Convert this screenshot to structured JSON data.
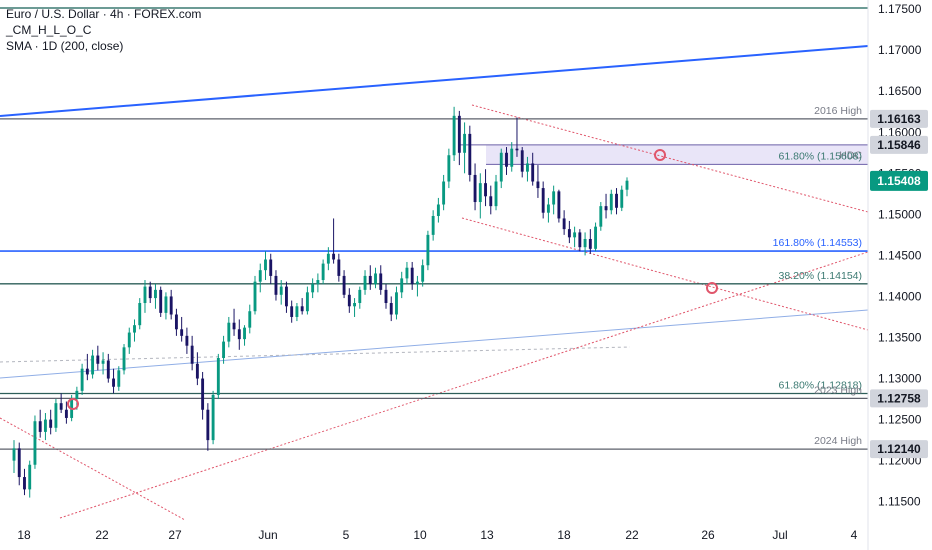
{
  "legend": {
    "title": "Euro / U.S. Dollar · 4h · FOREX.com",
    "indicator1": "_CM_H_L_O_C",
    "indicator2": "SMA · 1D (200, close)"
  },
  "chart_data": {
    "type": "candlestick",
    "symbol": "Euro / U.S. Dollar",
    "interval": "4h",
    "broker": "FOREX.com",
    "ylim": [
      1.1135,
      1.1755
    ],
    "y_ticks": [
      "1.17500",
      "1.17000",
      "1.16500",
      "1.16000",
      "1.15500",
      "1.15000",
      "1.14500",
      "1.14000",
      "1.13500",
      "1.13000",
      "1.12500",
      "1.12000",
      "1.11500"
    ],
    "x_ticks": [
      "18",
      "22",
      "27",
      "Jun",
      "5",
      "10",
      "13",
      "18",
      "22",
      "26",
      "Jul",
      "4"
    ],
    "levels": [
      {
        "label": "2016 High",
        "value": 1.16163,
        "tag": "1.16163",
        "color": "#787b86"
      },
      {
        "label": "HDC",
        "value": 1.15846,
        "tag": "1.15846",
        "color": "#787b86"
      },
      {
        "label": "61.80% (1.15608)",
        "value": 1.15608,
        "color": "#3c7a72"
      },
      {
        "label": "161.80% (1.14553)",
        "value": 1.14553,
        "color": "#2962ff"
      },
      {
        "label": "38.20% (1.14154)",
        "value": 1.14154,
        "color": "#3c7a72"
      },
      {
        "label": "61.80% (1.12818)",
        "value": 1.12818,
        "color": "#3c7a72"
      },
      {
        "label": "2023 High",
        "value": 1.12758,
        "tag": "1.12758",
        "color": "#787b86"
      },
      {
        "label": "2024 High",
        "value": 1.1214,
        "tag": "1.12140",
        "color": "#787b86"
      }
    ],
    "hdc_zone": [
      1.15608,
      1.15846
    ],
    "last_price": "1.15408",
    "candles": [
      [
        1.12,
        1.1225,
        1.1185,
        1.1215
      ],
      [
        1.1215,
        1.1222,
        1.117,
        1.118
      ],
      [
        1.118,
        1.119,
        1.1158,
        1.1165
      ],
      [
        1.1165,
        1.12,
        1.1155,
        1.1195
      ],
      [
        1.1195,
        1.1255,
        1.119,
        1.1248
      ],
      [
        1.1248,
        1.1262,
        1.1228,
        1.1235
      ],
      [
        1.1235,
        1.1258,
        1.1225,
        1.125
      ],
      [
        1.125,
        1.1262,
        1.1232,
        1.124
      ],
      [
        1.124,
        1.1275,
        1.1235,
        1.127
      ],
      [
        1.127,
        1.1282,
        1.1258,
        1.1262
      ],
      [
        1.1262,
        1.1272,
        1.1245,
        1.1252
      ],
      [
        1.1252,
        1.128,
        1.1248,
        1.1275
      ],
      [
        1.1275,
        1.129,
        1.1262,
        1.1285
      ],
      [
        1.1285,
        1.1318,
        1.128,
        1.1312
      ],
      [
        1.1312,
        1.133,
        1.1298,
        1.1305
      ],
      [
        1.1305,
        1.1335,
        1.13,
        1.1328
      ],
      [
        1.1328,
        1.134,
        1.131,
        1.1318
      ],
      [
        1.1318,
        1.1332,
        1.1305,
        1.1322
      ],
      [
        1.1322,
        1.133,
        1.1295,
        1.13
      ],
      [
        1.13,
        1.1312,
        1.1282,
        1.129
      ],
      [
        1.129,
        1.1315,
        1.1285,
        1.131
      ],
      [
        1.131,
        1.1342,
        1.1305,
        1.1338
      ],
      [
        1.1338,
        1.1362,
        1.133,
        1.1356
      ],
      [
        1.1356,
        1.1372,
        1.1345,
        1.1365
      ],
      [
        1.1365,
        1.1398,
        1.136,
        1.1392
      ],
      [
        1.1392,
        1.142,
        1.138,
        1.1412
      ],
      [
        1.1412,
        1.1418,
        1.1392,
        1.1398
      ],
      [
        1.1398,
        1.1415,
        1.1385,
        1.1408
      ],
      [
        1.1408,
        1.1412,
        1.1375,
        1.138
      ],
      [
        1.138,
        1.1405,
        1.1372,
        1.14
      ],
      [
        1.14,
        1.1408,
        1.1372,
        1.1378
      ],
      [
        1.1378,
        1.1385,
        1.1352,
        1.136
      ],
      [
        1.136,
        1.1375,
        1.1345,
        1.1352
      ],
      [
        1.1352,
        1.1362,
        1.133,
        1.134
      ],
      [
        1.134,
        1.1352,
        1.131,
        1.1318
      ],
      [
        1.1318,
        1.1332,
        1.1292,
        1.13
      ],
      [
        1.13,
        1.1308,
        1.125,
        1.1262
      ],
      [
        1.1262,
        1.127,
        1.1212,
        1.1225
      ],
      [
        1.1225,
        1.1285,
        1.122,
        1.128
      ],
      [
        1.128,
        1.133,
        1.1275,
        1.1325
      ],
      [
        1.1325,
        1.1352,
        1.1318,
        1.1345
      ],
      [
        1.1345,
        1.1375,
        1.1338,
        1.1368
      ],
      [
        1.1368,
        1.1385,
        1.1352,
        1.136
      ],
      [
        1.136,
        1.1372,
        1.1335,
        1.1348
      ],
      [
        1.1348,
        1.1365,
        1.134,
        1.1362
      ],
      [
        1.1362,
        1.139,
        1.1355,
        1.1382
      ],
      [
        1.1382,
        1.1425,
        1.1378,
        1.1418
      ],
      [
        1.1418,
        1.144,
        1.1405,
        1.1432
      ],
      [
        1.1432,
        1.1455,
        1.142,
        1.1445
      ],
      [
        1.1445,
        1.1452,
        1.1415,
        1.1425
      ],
      [
        1.1425,
        1.1432,
        1.1395,
        1.1402
      ],
      [
        1.1402,
        1.142,
        1.139,
        1.1412
      ],
      [
        1.1412,
        1.1418,
        1.138,
        1.1388
      ],
      [
        1.1388,
        1.1395,
        1.1368,
        1.1375
      ],
      [
        1.1375,
        1.1392,
        1.137,
        1.1388
      ],
      [
        1.1388,
        1.1398,
        1.1378,
        1.1382
      ],
      [
        1.1382,
        1.1412,
        1.1378,
        1.1405
      ],
      [
        1.1405,
        1.1422,
        1.1398,
        1.1415
      ],
      [
        1.1415,
        1.1428,
        1.1405,
        1.142
      ],
      [
        1.142,
        1.1445,
        1.1415,
        1.144
      ],
      [
        1.144,
        1.146,
        1.1432,
        1.1452
      ],
      [
        1.1452,
        1.1495,
        1.144,
        1.1445
      ],
      [
        1.1445,
        1.1452,
        1.1418,
        1.1425
      ],
      [
        1.1425,
        1.1432,
        1.1398,
        1.1402
      ],
      [
        1.1402,
        1.141,
        1.138,
        1.1388
      ],
      [
        1.1388,
        1.1398,
        1.1375,
        1.1392
      ],
      [
        1.1392,
        1.1412,
        1.1385,
        1.1408
      ],
      [
        1.1408,
        1.1432,
        1.1402,
        1.1425
      ],
      [
        1.1425,
        1.1438,
        1.1408,
        1.1415
      ],
      [
        1.1415,
        1.1435,
        1.141,
        1.1428
      ],
      [
        1.1428,
        1.1438,
        1.1402,
        1.1408
      ],
      [
        1.1408,
        1.1415,
        1.1385,
        1.1392
      ],
      [
        1.1392,
        1.14,
        1.137,
        1.1378
      ],
      [
        1.1378,
        1.1412,
        1.1372,
        1.1405
      ],
      [
        1.1405,
        1.143,
        1.1398,
        1.1422
      ],
      [
        1.1422,
        1.1442,
        1.1415,
        1.1435
      ],
      [
        1.1435,
        1.1442,
        1.1408,
        1.1415
      ],
      [
        1.1415,
        1.1425,
        1.14,
        1.1418
      ],
      [
        1.1418,
        1.1445,
        1.1412,
        1.1438
      ],
      [
        1.1438,
        1.148,
        1.1432,
        1.1475
      ],
      [
        1.1475,
        1.1505,
        1.1468,
        1.1498
      ],
      [
        1.1498,
        1.152,
        1.149,
        1.1512
      ],
      [
        1.1512,
        1.1548,
        1.1505,
        1.154
      ],
      [
        1.154,
        1.158,
        1.1532,
        1.1572
      ],
      [
        1.1572,
        1.1631,
        1.1565,
        1.162
      ],
      [
        1.162,
        1.1626,
        1.156,
        1.1575
      ],
      [
        1.1575,
        1.1612,
        1.155,
        1.1598
      ],
      [
        1.1598,
        1.1608,
        1.154,
        1.1548
      ],
      [
        1.1548,
        1.1562,
        1.1505,
        1.1515
      ],
      [
        1.1515,
        1.155,
        1.1495,
        1.1538
      ],
      [
        1.1538,
        1.1555,
        1.151,
        1.1522
      ],
      [
        1.1522,
        1.1535,
        1.15,
        1.151
      ],
      [
        1.151,
        1.1548,
        1.1505,
        1.154
      ],
      [
        1.154,
        1.158,
        1.1532,
        1.1575
      ],
      [
        1.1575,
        1.1582,
        1.1548,
        1.1558
      ],
      [
        1.1558,
        1.1588,
        1.1552,
        1.158
      ],
      [
        1.158,
        1.1618,
        1.157,
        1.1578
      ],
      [
        1.1578,
        1.1582,
        1.1545,
        1.1552
      ],
      [
        1.1552,
        1.157,
        1.154,
        1.1562
      ],
      [
        1.1562,
        1.1575,
        1.1535,
        1.154
      ],
      [
        1.154,
        1.156,
        1.152,
        1.1532
      ],
      [
        1.1532,
        1.154,
        1.1495,
        1.1502
      ],
      [
        1.1502,
        1.152,
        1.149,
        1.1512
      ],
      [
        1.1512,
        1.1535,
        1.15,
        1.1528
      ],
      [
        1.1528,
        1.153,
        1.149,
        1.1495
      ],
      [
        1.1495,
        1.1505,
        1.1475,
        1.1482
      ],
      [
        1.1482,
        1.1492,
        1.1465,
        1.1472
      ],
      [
        1.1472,
        1.1485,
        1.146,
        1.1478
      ],
      [
        1.1478,
        1.1482,
        1.1455,
        1.146
      ],
      [
        1.146,
        1.1478,
        1.145,
        1.147
      ],
      [
        1.147,
        1.1482,
        1.1452,
        1.1458
      ],
      [
        1.1458,
        1.149,
        1.1455,
        1.1485
      ],
      [
        1.1485,
        1.1515,
        1.148,
        1.151
      ],
      [
        1.151,
        1.1525,
        1.1495,
        1.1505
      ],
      [
        1.1505,
        1.153,
        1.15,
        1.1525
      ],
      [
        1.1525,
        1.1532,
        1.15,
        1.1508
      ],
      [
        1.1508,
        1.1535,
        1.1504,
        1.153
      ],
      [
        1.153,
        1.1545,
        1.1522,
        1.1541
      ]
    ]
  }
}
